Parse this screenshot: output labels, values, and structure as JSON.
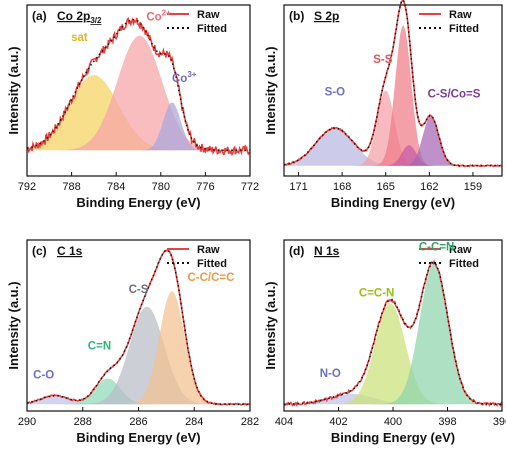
{
  "chart_data": [
    {
      "type": "line",
      "panel_label": "(a)",
      "title": "Co 2p",
      "title_sub": "3/2",
      "xlabel": "Binding Energy (eV)",
      "ylabel": "Intensity (a.u.)",
      "xlim": [
        792,
        772
      ],
      "xticks": [
        "792",
        "788",
        "784",
        "780",
        "776",
        "772"
      ],
      "legend": [
        "Raw",
        "Fitted"
      ],
      "baseline": 0.15,
      "peaks": [
        {
          "label": "sat",
          "center": 786.0,
          "amp": 0.44,
          "width": 2.2,
          "color": "#f4d35e",
          "label_color": "#e6b91e",
          "label_x": 787.3,
          "label_y": 0.79
        },
        {
          "label": "Co2+",
          "center": 781.9,
          "amp": 0.67,
          "width": 2.0,
          "color": "#f6a3a8",
          "label_color": "#e86c74",
          "label_x": 780.2,
          "label_y": 0.91
        },
        {
          "label": "Co3+",
          "center": 779.0,
          "amp": 0.28,
          "width": 0.8,
          "color": "#a9a6dd",
          "label_color": "#6f6bc2",
          "label_x": 777.9,
          "label_y": 0.55
        }
      ]
    },
    {
      "type": "line",
      "panel_label": "(b)",
      "title": "S 2p",
      "xlabel": "Binding Energy (eV)",
      "ylabel": "Intensity (a.u.)",
      "xlim": [
        172,
        157
      ],
      "xticks": [
        "171",
        "168",
        "165",
        "162",
        "159"
      ],
      "legend": [
        "Raw",
        "Fitted"
      ],
      "baseline": 0.06,
      "peaks": [
        {
          "label": "S-O",
          "center": 168.5,
          "amp": 0.22,
          "width": 1.3,
          "color": "#b8b8e2",
          "label_color": "#6b71c8",
          "label_x": 168.5,
          "label_y": 0.47
        },
        {
          "label": "S-S",
          "center": 165.0,
          "amp": 0.44,
          "width": 0.6,
          "color": "#f2a0a6",
          "label_color": "#e5545e",
          "label_x": 165.2,
          "label_y": 0.66
        },
        {
          "label": "",
          "center": 163.8,
          "amp": 0.82,
          "width": 0.55,
          "color": "#f07c88",
          "label_color": "#e5545e",
          "label_x": 163.8,
          "label_y": 0.9
        },
        {
          "label": "",
          "center": 163.4,
          "amp": 0.12,
          "width": 0.5,
          "color": "#c75aa2",
          "label_color": "#7d3a96",
          "label_x": 163.4,
          "label_y": 0.3
        },
        {
          "label": "C-S/Co=S",
          "center": 161.9,
          "amp": 0.29,
          "width": 0.55,
          "color": "#a567b5",
          "label_color": "#7d3a96",
          "label_x": 160.3,
          "label_y": 0.46
        }
      ]
    },
    {
      "type": "line",
      "panel_label": "(c)",
      "title": "C 1s",
      "xlabel": "Binding Energy (eV)",
      "ylabel": "Intensity (a.u.)",
      "xlim": [
        290,
        282
      ],
      "xticks": [
        "290",
        "288",
        "286",
        "284",
        "282"
      ],
      "legend": [
        "Raw",
        "Fitted"
      ],
      "baseline": 0.04,
      "peaks": [
        {
          "label": "C-O",
          "center": 289.0,
          "amp": 0.05,
          "width": 0.5,
          "color": "#bfc3e8",
          "label_color": "#6b71c8",
          "label_x": 289.4,
          "label_y": 0.19
        },
        {
          "label": "C=N",
          "center": 287.1,
          "amp": 0.15,
          "width": 0.45,
          "color": "#8fd8b8",
          "label_color": "#2db67c",
          "label_x": 287.4,
          "label_y": 0.36
        },
        {
          "label": "C-S",
          "center": 285.7,
          "amp": 0.57,
          "width": 0.62,
          "color": "#b8bcc6",
          "label_color": "#6c717c",
          "label_x": 286.0,
          "label_y": 0.69
        },
        {
          "label": "C-C/C=C",
          "center": 284.8,
          "amp": 0.66,
          "width": 0.45,
          "color": "#f2c090",
          "label_color": "#ec9a46",
          "label_x": 283.4,
          "label_y": 0.76
        }
      ]
    },
    {
      "type": "line",
      "panel_label": "(d)",
      "title": "N 1s",
      "xlabel": "Binding Energy (eV)",
      "ylabel": "Intensity (a.u.)",
      "xlim": [
        404,
        396
      ],
      "xticks": [
        "404",
        "402",
        "400",
        "398",
        "396"
      ],
      "legend": [
        "Raw",
        "Fitted"
      ],
      "baseline": 0.04,
      "peaks": [
        {
          "label": "N-O",
          "center": 401.5,
          "amp": 0.06,
          "width": 0.8,
          "color": "#bfc3e8",
          "label_color": "#6b71c8",
          "label_x": 402.3,
          "label_y": 0.2
        },
        {
          "label": "C=C-N",
          "center": 400.1,
          "amp": 0.59,
          "width": 0.55,
          "color": "#cbe27a",
          "label_color": "#97bf12",
          "label_x": 400.6,
          "label_y": 0.67
        },
        {
          "label": "C-C=N",
          "center": 398.5,
          "amp": 0.82,
          "width": 0.52,
          "color": "#8fd4ac",
          "label_color": "#2aa86a",
          "label_x": 398.4,
          "label_y": 0.94
        }
      ]
    }
  ],
  "style": {
    "raw_color": "#e8403c",
    "fitted_color": "#111111"
  }
}
